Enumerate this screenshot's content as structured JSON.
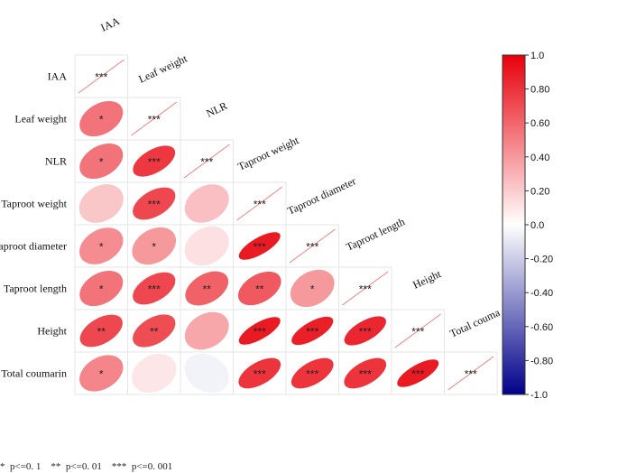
{
  "chart_data": {
    "type": "correlation-matrix",
    "variables": [
      "IAA",
      "Leaf weight",
      "NLR",
      "Taproot weight",
      "Taproot diameter",
      "Taproot length",
      "Height",
      "Total coumarin"
    ],
    "top_labels": [
      "IAA",
      "Leaf weight",
      "NLR",
      "Taproot weight",
      "Taproot diameter",
      "Taproot length",
      "Height",
      "Total couma"
    ],
    "correlations": [
      [
        1.0
      ],
      [
        0.55,
        1.0
      ],
      [
        0.55,
        0.78,
        1.0
      ],
      [
        0.22,
        0.72,
        0.25,
        1.0
      ],
      [
        0.45,
        0.4,
        0.12,
        0.9,
        1.0
      ],
      [
        0.55,
        0.72,
        0.62,
        0.65,
        0.4,
        1.0
      ],
      [
        0.72,
        0.7,
        0.35,
        0.9,
        0.88,
        0.85,
        1.0
      ],
      [
        0.48,
        0.1,
        -0.05,
        0.8,
        0.8,
        0.8,
        0.9,
        1.0
      ]
    ],
    "significance": [
      [
        "***"
      ],
      [
        "*",
        "***"
      ],
      [
        "*",
        "***",
        "***"
      ],
      [
        "",
        "***",
        "",
        "***"
      ],
      [
        "*",
        "*",
        "",
        "***",
        "***"
      ],
      [
        "*",
        "***",
        "**",
        "**",
        "*",
        "***"
      ],
      [
        "**",
        "**",
        "",
        "***",
        "***",
        "***",
        "***"
      ],
      [
        "*",
        "",
        "",
        "***",
        "***",
        "***",
        "***",
        "***"
      ]
    ],
    "colorbar": {
      "ticks": [
        "1.0",
        "0.80",
        "0.60",
        "0.40",
        "0.20",
        "0.0",
        "-0.20",
        "-0.40",
        "-0.60",
        "-0.80",
        "-1.0"
      ],
      "range": [
        -1,
        1
      ],
      "high_color": "#e8000b",
      "mid_color": "#ffffff",
      "low_color": "#00008b"
    },
    "legend_note": "*  p<=0. 1    **  p<=0. 01    ***  p<=0. 001"
  }
}
